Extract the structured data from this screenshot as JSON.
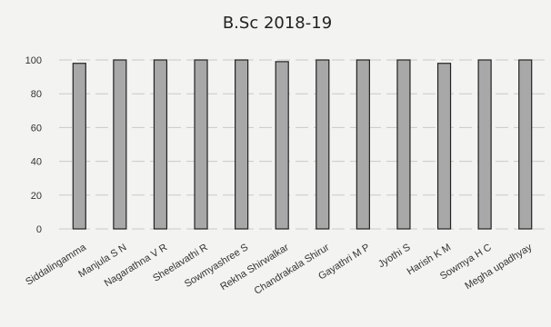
{
  "chart_data": {
    "type": "bar",
    "title": "B.Sc 2018-19",
    "xlabel": "",
    "ylabel": "",
    "categories": [
      "Siddalingamma",
      "Manjula S N",
      "Nagarathna V R",
      "Sheelavathi R",
      "Sowmyashree S",
      "Rekha Shirwalkar",
      "Chandrakala Shirur",
      "Gayathri M P",
      "Jyothi S",
      "Harish K M",
      "Sowmya H C",
      "Megha upadhyay"
    ],
    "values": [
      98,
      100,
      100,
      100,
      100,
      99,
      100,
      100,
      100,
      98,
      100,
      100
    ],
    "ylim": [
      0,
      100
    ],
    "yticks": [
      0,
      20,
      40,
      60,
      80,
      100
    ],
    "grid": true,
    "colors": {
      "bar": "#a8a8a8",
      "bar_edge": "#222222",
      "grid": "#c9c9c9"
    }
  }
}
